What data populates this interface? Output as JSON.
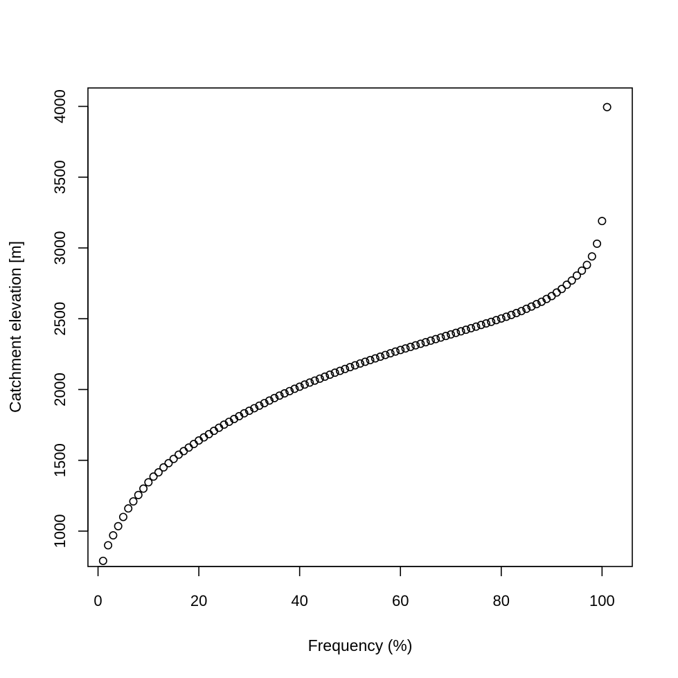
{
  "chart_data": {
    "type": "scatter",
    "title": "",
    "xlabel": "Frequency (%)",
    "ylabel": "Catchment elevation [m]",
    "xlim": [
      -2,
      106
    ],
    "ylim": [
      750,
      4130
    ],
    "xticks": [
      0,
      20,
      40,
      60,
      80,
      100
    ],
    "yticks": [
      1000,
      1500,
      2000,
      2500,
      3000,
      3500,
      4000
    ],
    "xtick_labels": [
      "0",
      "20",
      "40",
      "60",
      "80",
      "100"
    ],
    "ytick_labels": [
      "1000",
      "1500",
      "2000",
      "2500",
      "3000",
      "3500",
      "4000"
    ],
    "grid": false,
    "marker": "open-circle",
    "marker_color": "#000000",
    "points": [
      [
        1,
        790
      ],
      [
        2,
        900
      ],
      [
        3,
        970
      ],
      [
        4,
        1035
      ],
      [
        5,
        1100
      ],
      [
        6,
        1160
      ],
      [
        7,
        1210
      ],
      [
        8,
        1255
      ],
      [
        9,
        1300
      ],
      [
        10,
        1345
      ],
      [
        11,
        1385
      ],
      [
        12,
        1415
      ],
      [
        13,
        1450
      ],
      [
        14,
        1480
      ],
      [
        15,
        1510
      ],
      [
        16,
        1540
      ],
      [
        17,
        1565
      ],
      [
        18,
        1590
      ],
      [
        19,
        1615
      ],
      [
        20,
        1640
      ],
      [
        21,
        1662
      ],
      [
        22,
        1685
      ],
      [
        23,
        1708
      ],
      [
        24,
        1730
      ],
      [
        25,
        1752
      ],
      [
        26,
        1772
      ],
      [
        27,
        1792
      ],
      [
        28,
        1812
      ],
      [
        29,
        1832
      ],
      [
        30,
        1850
      ],
      [
        31,
        1868
      ],
      [
        32,
        1886
      ],
      [
        33,
        1904
      ],
      [
        34,
        1922
      ],
      [
        35,
        1940
      ],
      [
        36,
        1957
      ],
      [
        37,
        1973
      ],
      [
        38,
        1989
      ],
      [
        39,
        2005
      ],
      [
        40,
        2020
      ],
      [
        41,
        2035
      ],
      [
        42,
        2049
      ],
      [
        43,
        2063
      ],
      [
        44,
        2077
      ],
      [
        45,
        2091
      ],
      [
        46,
        2105
      ],
      [
        47,
        2119
      ],
      [
        48,
        2132
      ],
      [
        49,
        2145
      ],
      [
        50,
        2158
      ],
      [
        51,
        2171
      ],
      [
        52,
        2184
      ],
      [
        53,
        2196
      ],
      [
        54,
        2208
      ],
      [
        55,
        2220
      ],
      [
        56,
        2232
      ],
      [
        57,
        2244
      ],
      [
        58,
        2256
      ],
      [
        59,
        2268
      ],
      [
        60,
        2279
      ],
      [
        61,
        2290
      ],
      [
        62,
        2301
      ],
      [
        63,
        2312
      ],
      [
        64,
        2323
      ],
      [
        65,
        2334
      ],
      [
        66,
        2345
      ],
      [
        67,
        2356
      ],
      [
        68,
        2367
      ],
      [
        69,
        2378
      ],
      [
        70,
        2389
      ],
      [
        71,
        2400
      ],
      [
        72,
        2411
      ],
      [
        73,
        2422
      ],
      [
        74,
        2433
      ],
      [
        75,
        2444
      ],
      [
        76,
        2456
      ],
      [
        77,
        2467
      ],
      [
        78,
        2478
      ],
      [
        79,
        2490
      ],
      [
        80,
        2502
      ],
      [
        81,
        2514
      ],
      [
        82,
        2527
      ],
      [
        83,
        2540
      ],
      [
        84,
        2554
      ],
      [
        85,
        2570
      ],
      [
        86,
        2586
      ],
      [
        87,
        2603
      ],
      [
        88,
        2620
      ],
      [
        89,
        2640
      ],
      [
        90,
        2660
      ],
      [
        91,
        2685
      ],
      [
        92,
        2710
      ],
      [
        93,
        2740
      ],
      [
        94,
        2770
      ],
      [
        95,
        2805
      ],
      [
        96,
        2840
      ],
      [
        97,
        2880
      ],
      [
        98,
        2940
      ],
      [
        99,
        3030
      ],
      [
        100,
        3190
      ],
      [
        101,
        3995
      ]
    ]
  }
}
